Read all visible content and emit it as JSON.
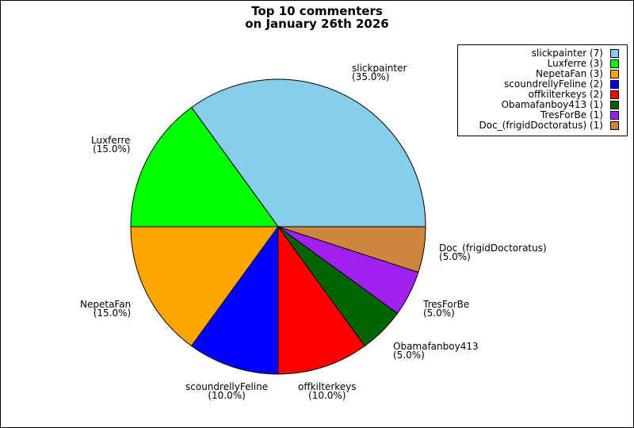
{
  "title_lines": [
    "Top 10 commenters",
    "on January 26th 2026"
  ],
  "chart_data": {
    "type": "pie",
    "title": "Top 10 commenters on January 26th 2026",
    "categories": [
      "slickpainter",
      "Luxferre",
      "NepetaFan",
      "scoundrellyFeline",
      "offkilterkeys",
      "Obamafanboy413",
      "TresForBe",
      "Doc_(frigidDoctoratus)"
    ],
    "values": [
      7,
      3,
      3,
      2,
      2,
      1,
      1,
      1
    ],
    "percent_labels": [
      "(35.0%)",
      "(15.0%)",
      "(15.0%)",
      "(10.0%)",
      "(10.0%)",
      "(5.0%)",
      "(5.0%)",
      "(5.0%)"
    ],
    "legend_labels": [
      "slickpainter (7)",
      "Luxferre (3)",
      "NepetaFan (3)",
      "scoundrellyFeline (2)",
      "offkilterkeys (2)",
      "Obamafanboy413 (1)",
      "TresForBe (1)",
      "Doc_(frigidDoctoratus) (1)"
    ],
    "colors": [
      "#87ceeb",
      "#00ff00",
      "#ffa500",
      "#0000ff",
      "#ff0000",
      "#006400",
      "#a020f0",
      "#cd853f"
    ],
    "start_angle_deg": 0,
    "direction": "counterclockwise",
    "legend_position": "top-right"
  }
}
